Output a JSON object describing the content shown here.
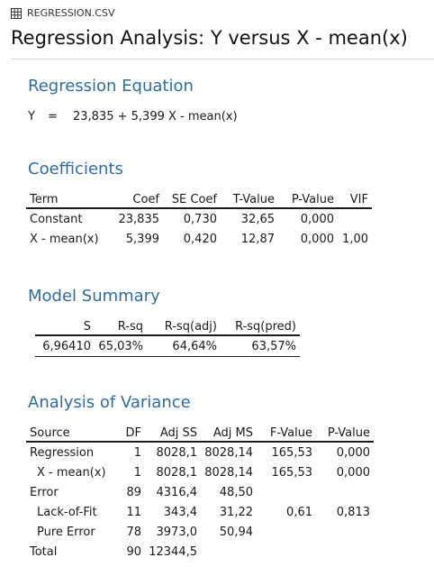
{
  "file": {
    "icon": "table-grid-icon",
    "name": "REGRESSION.CSV"
  },
  "title": "Regression Analysis: Y versus X - mean(x)",
  "sections": {
    "equation": "Regression Equation",
    "coefficients": "Coefficients",
    "summary": "Model Summary",
    "anova": "Analysis of Variance"
  },
  "equation": {
    "lhs": "Y",
    "sign": "=",
    "rhs": "23,835 + 5,399 X - mean(x)"
  },
  "coefficients": {
    "headers": [
      "Term",
      "Coef",
      "SE Coef",
      "T-Value",
      "P-Value",
      "VIF"
    ],
    "rows": [
      [
        "Constant",
        "23,835",
        "0,730",
        "32,65",
        "0,000",
        ""
      ],
      [
        "X - mean(x)",
        "5,399",
        "0,420",
        "12,87",
        "0,000",
        "1,00"
      ]
    ]
  },
  "summary": {
    "headers": [
      "S",
      "R-sq",
      "R-sq(adj)",
      "R-sq(pred)"
    ],
    "rows": [
      [
        "6,96410",
        "65,03%",
        "64,64%",
        "63,57%"
      ]
    ]
  },
  "anova": {
    "headers": [
      "Source",
      "DF",
      "Adj SS",
      "Adj MS",
      "F-Value",
      "P-Value"
    ],
    "rows": [
      [
        "Regression",
        "1",
        "8028,1",
        "8028,14",
        "165,53",
        "0,000"
      ],
      [
        "X - mean(x)",
        "1",
        "8028,1",
        "8028,14",
        "165,53",
        "0,000"
      ],
      [
        "Error",
        "89",
        "4316,4",
        "48,50",
        "",
        ""
      ],
      [
        "Lack-of-Fit",
        "11",
        "343,4",
        "31,22",
        "0,61",
        "0,813"
      ],
      [
        "Pure Error",
        "78",
        "3973,0",
        "50,94",
        "",
        ""
      ],
      [
        "Total",
        "90",
        "12344,5",
        "",
        "",
        ""
      ]
    ]
  }
}
